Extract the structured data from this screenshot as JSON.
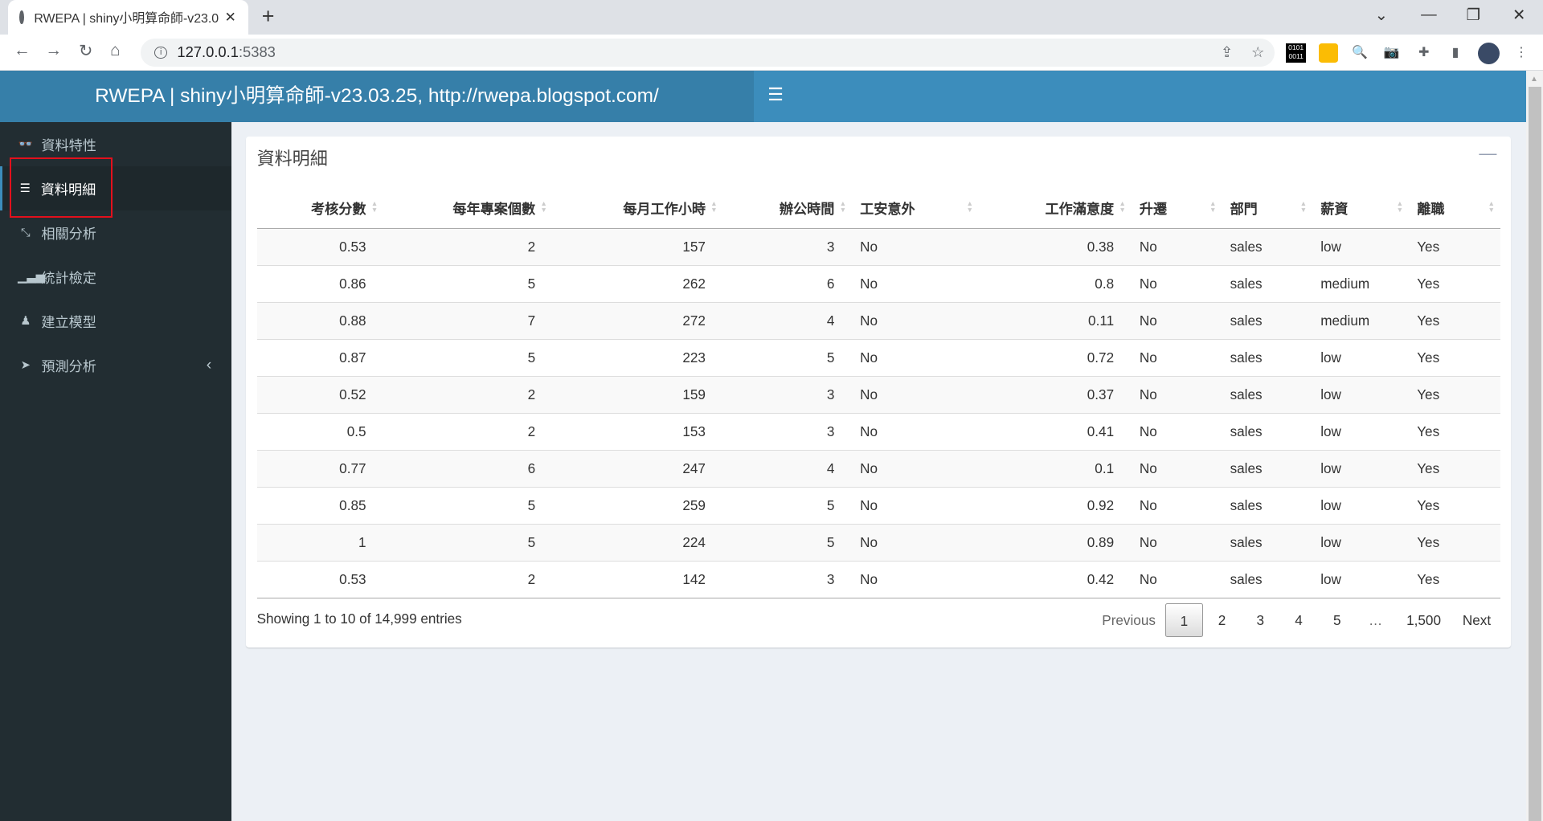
{
  "browser": {
    "tab_title": "RWEPA | shiny小明算命師-v23.0",
    "url_host": "127.0.0.1",
    "url_port": ":5383"
  },
  "header": {
    "title": "RWEPA | shiny小明算命師-v23.03.25, http://rwepa.blogspot.com/"
  },
  "sidebar": {
    "items": [
      {
        "label": "資料特性",
        "icon": "glasses-icon"
      },
      {
        "label": "資料明細",
        "icon": "list-icon",
        "active": true
      },
      {
        "label": "相關分析",
        "icon": "compress-icon"
      },
      {
        "label": "統計檢定",
        "icon": "bar-chart-icon"
      },
      {
        "label": "建立模型",
        "icon": "chess-icon"
      },
      {
        "label": "預測分析",
        "icon": "paper-plane-icon",
        "has_children": true
      }
    ]
  },
  "box": {
    "title": "資料明細"
  },
  "table": {
    "columns": [
      "考核分數",
      "每年專案個數",
      "每月工作小時",
      "辦公時間",
      "工安意外",
      "工作滿意度",
      "升遷",
      "部門",
      "薪資",
      "離職"
    ],
    "rows": [
      [
        "0.53",
        "2",
        "157",
        "3",
        "No",
        "0.38",
        "No",
        "sales",
        "low",
        "Yes"
      ],
      [
        "0.86",
        "5",
        "262",
        "6",
        "No",
        "0.8",
        "No",
        "sales",
        "medium",
        "Yes"
      ],
      [
        "0.88",
        "7",
        "272",
        "4",
        "No",
        "0.11",
        "No",
        "sales",
        "medium",
        "Yes"
      ],
      [
        "0.87",
        "5",
        "223",
        "5",
        "No",
        "0.72",
        "No",
        "sales",
        "low",
        "Yes"
      ],
      [
        "0.52",
        "2",
        "159",
        "3",
        "No",
        "0.37",
        "No",
        "sales",
        "low",
        "Yes"
      ],
      [
        "0.5",
        "2",
        "153",
        "3",
        "No",
        "0.41",
        "No",
        "sales",
        "low",
        "Yes"
      ],
      [
        "0.77",
        "6",
        "247",
        "4",
        "No",
        "0.1",
        "No",
        "sales",
        "low",
        "Yes"
      ],
      [
        "0.85",
        "5",
        "259",
        "5",
        "No",
        "0.92",
        "No",
        "sales",
        "low",
        "Yes"
      ],
      [
        "1",
        "5",
        "224",
        "5",
        "No",
        "0.89",
        "No",
        "sales",
        "low",
        "Yes"
      ],
      [
        "0.53",
        "2",
        "142",
        "3",
        "No",
        "0.42",
        "No",
        "sales",
        "low",
        "Yes"
      ]
    ],
    "info": "Showing 1 to 10 of 14,999 entries"
  },
  "pagination": {
    "previous": "Previous",
    "pages": [
      "1",
      "2",
      "3",
      "4",
      "5",
      "…",
      "1,500"
    ],
    "current": "1",
    "next": "Next"
  },
  "colors": {
    "header": "#3c8dbc",
    "logo": "#367fa9",
    "sidebar": "#222d32",
    "highlight": "#e3101c"
  }
}
